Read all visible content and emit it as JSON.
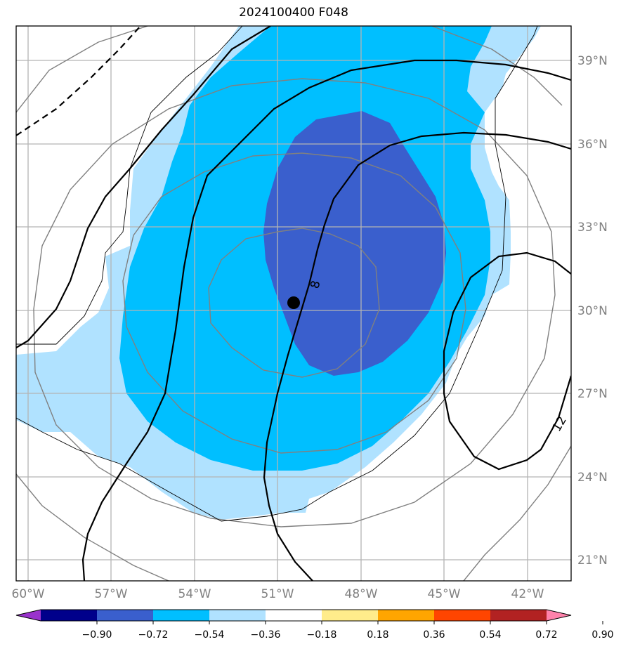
{
  "title": "2024100400 F048",
  "latitude_labels": [
    "39°N",
    "36°N",
    "33°N",
    "30°N",
    "27°N",
    "24°N",
    "21°N"
  ],
  "longitude_labels": [
    "60°W",
    "57°W",
    "54°W",
    "51°W",
    "48°W",
    "45°W",
    "42°W"
  ],
  "contour_labels": [
    "8",
    "12"
  ],
  "colorbar": {
    "tick_labels": [
      "−0.90",
      "−0.72",
      "−0.54",
      "−0.36",
      "−0.18",
      "0.18",
      "0.36",
      "0.54",
      "0.72",
      "0.90"
    ],
    "colors": [
      "#9932cc",
      "#00008b",
      "#3a5fcd",
      "#00bfff",
      "#b0e2ff",
      "#ffffff",
      "#ffec8b",
      "#ffa500",
      "#ff4500",
      "#b22222",
      "#ff82ab"
    ]
  },
  "fill_colors": {
    "light_blue": "#b0e2ff",
    "deep_sky_blue": "#00bfff",
    "royal_blue": "#3a5fcd"
  },
  "center_marker": {
    "lon": "49.5°W",
    "lat": "30.2°N"
  }
}
